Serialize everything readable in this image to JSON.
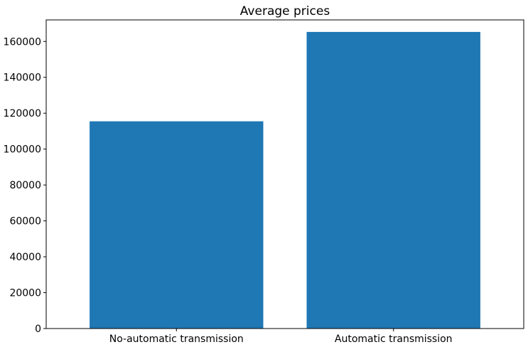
{
  "chart_data": {
    "type": "bar",
    "title": "Average prices",
    "xlabel": "",
    "ylabel": "",
    "categories": [
      "No-automatic transmission",
      "Automatic transmission"
    ],
    "values": [
      115500,
      165300
    ],
    "ylim": [
      0,
      172000
    ],
    "yticks": [
      0,
      20000,
      40000,
      60000,
      80000,
      100000,
      120000,
      140000,
      160000
    ],
    "ytick_labels": [
      "0",
      "20000",
      "40000",
      "60000",
      "80000",
      "100000",
      "120000",
      "140000",
      "160000"
    ],
    "bar_color": "#1f77b4",
    "grid": false,
    "legend": "none"
  }
}
